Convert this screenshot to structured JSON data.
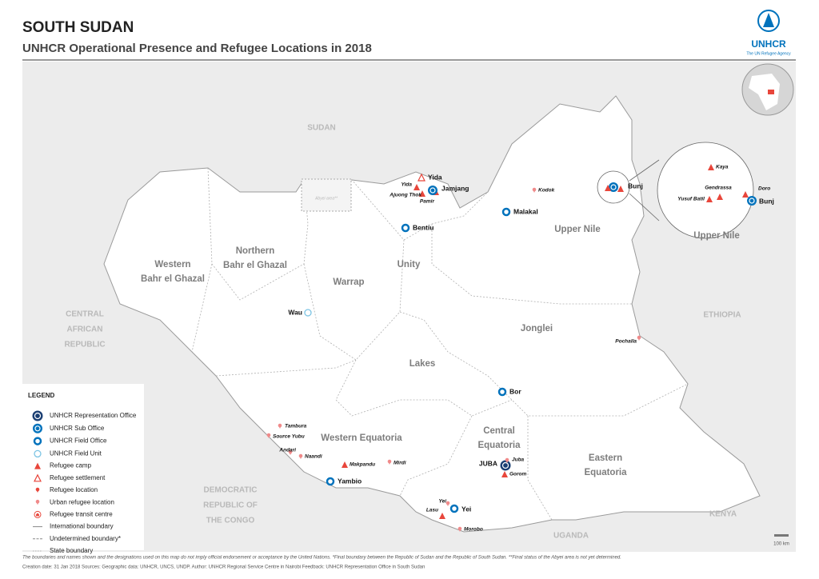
{
  "header": {
    "title": "SOUTH SUDAN",
    "subtitle": "UNHCR Operational Presence and Refugee Locations in 2018",
    "logo_text": "UNHCR",
    "logo_tagline": "The UN Refugee Agency"
  },
  "countries": [
    {
      "lines": [
        "SUDAN"
      ]
    },
    {
      "lines": [
        "CENTRAL",
        "AFRICAN",
        "REPUBLIC"
      ]
    },
    {
      "lines": [
        "DEMOCRATIC",
        "REPUBLIC OF",
        "THE CONGO"
      ]
    },
    {
      "lines": [
        "UGANDA"
      ]
    },
    {
      "lines": [
        "KENYA"
      ]
    },
    {
      "lines": [
        "ETHIOPIA"
      ]
    },
    {
      "lines": [
        "Abyei area**"
      ]
    }
  ],
  "states": [
    {
      "lines": [
        "Western",
        "Bahr el Ghazal"
      ]
    },
    {
      "lines": [
        "Northern",
        "Bahr el Ghazal"
      ]
    },
    {
      "lines": [
        "Warrap"
      ]
    },
    {
      "lines": [
        "Unity"
      ]
    },
    {
      "lines": [
        "Upper Nile"
      ]
    },
    {
      "lines": [
        "Jonglei"
      ]
    },
    {
      "lines": [
        "Lakes"
      ]
    },
    {
      "lines": [
        "Western Equatoria"
      ]
    },
    {
      "lines": [
        "Central",
        "Equatoria"
      ]
    },
    {
      "lines": [
        "Eastern",
        "Equatoria"
      ]
    }
  ],
  "locations": [
    {
      "label": "Yida",
      "kind": "settlement"
    },
    {
      "label": "Yida",
      "kind": "camp"
    },
    {
      "label": "Ajuong Thok",
      "kind": "camp"
    },
    {
      "label": "Pamir",
      "kind": "camp"
    },
    {
      "label": "Jamjang",
      "kind": "sub-office"
    },
    {
      "label": "Kodok",
      "kind": "urban"
    },
    {
      "label": "Malakal",
      "kind": "field-office"
    },
    {
      "label": "Bentiu",
      "kind": "field-office"
    },
    {
      "label": "Bunj",
      "kind": "sub-office"
    },
    {
      "label": "Wau",
      "kind": "field-unit"
    },
    {
      "label": "Pochalla",
      "kind": "urban"
    },
    {
      "label": "Bor",
      "kind": "field-office"
    },
    {
      "label": "Tambura",
      "kind": "urban"
    },
    {
      "label": "Source Yubu",
      "kind": "urban"
    },
    {
      "label": "Andari",
      "kind": "urban"
    },
    {
      "label": "Naandi",
      "kind": "urban"
    },
    {
      "label": "Makpandu",
      "kind": "camp"
    },
    {
      "label": "Mirdi",
      "kind": "urban"
    },
    {
      "label": "Yambio",
      "kind": "field-office"
    },
    {
      "label": "JUBA",
      "kind": "rep-office"
    },
    {
      "label": "Juba",
      "kind": "urban"
    },
    {
      "label": "Gorom",
      "kind": "camp"
    },
    {
      "label": "Yei",
      "kind": "field-office"
    },
    {
      "label": "Yei",
      "kind": "urban"
    },
    {
      "label": "Lasu",
      "kind": "camp"
    },
    {
      "label": "Morobo",
      "kind": "urban"
    }
  ],
  "inset": {
    "title": "Upper Nile",
    "locations": [
      {
        "label": "Kaya",
        "kind": "camp"
      },
      {
        "label": "Gendrassa",
        "kind": "camp"
      },
      {
        "label": "Doro",
        "kind": "camp"
      },
      {
        "label": "Yusuf Batil",
        "kind": "camp"
      },
      {
        "label": "Bunj",
        "kind": "sub-office"
      }
    ]
  },
  "legend": {
    "title": "LEGEND",
    "items": [
      {
        "label": "UNHCR Representation Office",
        "kind": "rep-office"
      },
      {
        "label": "UNHCR Sub Office",
        "kind": "sub-office"
      },
      {
        "label": "UNHCR Field Office",
        "kind": "field-office"
      },
      {
        "label": "UNHCR Field Unit",
        "kind": "field-unit"
      },
      {
        "label": "Refugee camp",
        "kind": "camp"
      },
      {
        "label": "Refugee settlement",
        "kind": "settlement"
      },
      {
        "label": "Refugee location",
        "kind": "location"
      },
      {
        "label": "Urban refugee location",
        "kind": "urban"
      },
      {
        "label": "Refugee transit centre",
        "kind": "transit"
      },
      {
        "label": "International boundary",
        "kind": "intl-line"
      },
      {
        "label": "Undetermined boundary*",
        "kind": "undet-line"
      },
      {
        "label": "State boundary",
        "kind": "state-line"
      }
    ]
  },
  "scale_label": "100 km",
  "footer": {
    "disclaimer": "The boundaries and names shown and the designations used on this map do not imply official endorsement or acceptance by the United Nations. *Final boundary between the Republic of Sudan and the Republic of South Sudan. **Final status of the Abyei area is not yet determined.",
    "credits": "Creation date: 31 Jan 2018    Sources: Geographic data: UNHCR, UNCS, UNDP.    Author: UNHCR Regional Service Centre in Nairobi    Feedback: UNHCR Representation Office in South Sudan"
  }
}
